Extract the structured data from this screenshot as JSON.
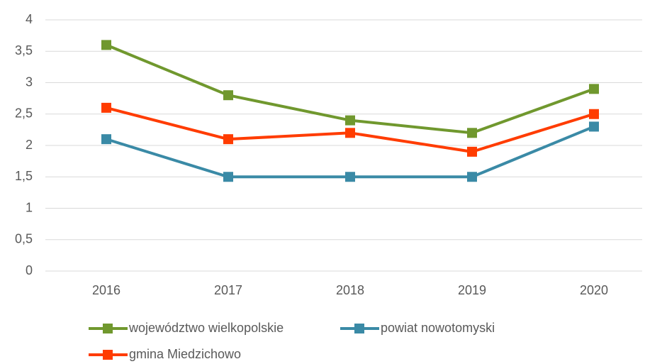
{
  "chart_data": {
    "type": "line",
    "categories": [
      "2016",
      "2017",
      "2018",
      "2019",
      "2020"
    ],
    "series": [
      {
        "name": "województwo wielkopolskie",
        "color": "#70982e",
        "values": [
          3.6,
          2.8,
          2.4,
          2.2,
          2.9
        ]
      },
      {
        "name": "powiat nowotomyski",
        "color": "#3a8aa6",
        "values": [
          2.1,
          1.5,
          1.5,
          1.5,
          2.3
        ]
      },
      {
        "name": "gmina Miedzichowo",
        "color": "#ff3c00",
        "values": [
          2.6,
          2.1,
          2.2,
          1.9,
          2.5
        ]
      }
    ],
    "ylim": [
      0,
      4
    ],
    "yticks": [
      0,
      {
        "value": 0.5,
        "label": "0,5"
      },
      1,
      {
        "value": 1.5,
        "label": "1,5"
      },
      2,
      {
        "value": 2.5,
        "label": "2,5"
      },
      3,
      {
        "value": 3.5,
        "label": "3,5"
      },
      4
    ],
    "grid": true,
    "legend": "bottom"
  }
}
